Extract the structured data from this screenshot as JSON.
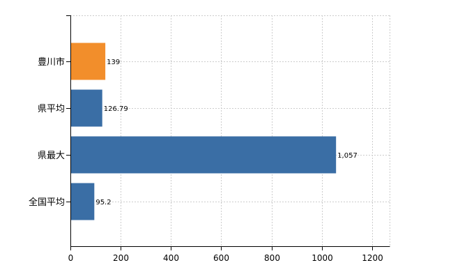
{
  "chart_data": {
    "type": "bar",
    "orientation": "horizontal",
    "categories": [
      "豊川市",
      "県平均",
      "県最大",
      "全国平均"
    ],
    "values": [
      139,
      126.79,
      1057,
      95.2
    ],
    "value_labels": [
      "139",
      "126.79",
      "1,057",
      "95.2"
    ],
    "bar_colors": [
      "#f28e2b",
      "#3a6ea5",
      "#3a6ea5",
      "#3a6ea5"
    ],
    "xlim": [
      0,
      1270
    ],
    "xticks": [
      0,
      200,
      400,
      600,
      800,
      1000,
      1200
    ],
    "xtick_labels": [
      "0",
      "200",
      "400",
      "600",
      "800",
      "1000",
      "1200"
    ],
    "grid": true,
    "title": "",
    "xlabel": "",
    "ylabel": ""
  }
}
